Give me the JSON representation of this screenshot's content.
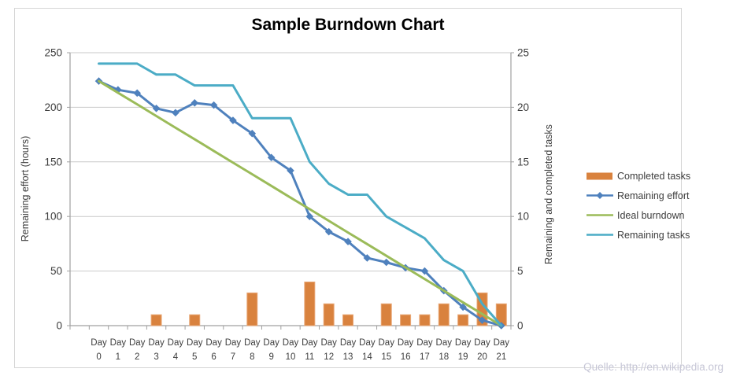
{
  "chart": {
    "title": "Sample Burndown Chart",
    "left_axis_title": "Remaining effort (hours)",
    "right_axis_title": "Remaining and completed tasks",
    "source_note": "Quelle: http://en.wikipedia.org"
  },
  "legend": {
    "items": [
      {
        "label": "Completed tasks",
        "swatch": "bar",
        "marker": "none",
        "color": "#D9823E"
      },
      {
        "label": "Remaining effort",
        "swatch": "line",
        "marker": "diamond",
        "color": "#4F81BD"
      },
      {
        "label": "Ideal burndown",
        "swatch": "line",
        "marker": "none",
        "color": "#9BBB59"
      },
      {
        "label": "Remaining tasks",
        "swatch": "line",
        "marker": "none",
        "color": "#4BACC6"
      }
    ]
  },
  "chart_data": {
    "type": "combo-bar-line",
    "title": "Sample Burndown Chart",
    "categories": [
      "Day 0",
      "Day 1",
      "Day 2",
      "Day 3",
      "Day 4",
      "Day 5",
      "Day 6",
      "Day 7",
      "Day 8",
      "Day 9",
      "Day 10",
      "Day 11",
      "Day 12",
      "Day 13",
      "Day 14",
      "Day 15",
      "Day 16",
      "Day 17",
      "Day 18",
      "Day 19",
      "Day 20",
      "Day 21"
    ],
    "left_axis": {
      "label": "Remaining effort (hours)",
      "min": 0,
      "max": 250,
      "ticks": [
        0,
        50,
        100,
        150,
        200,
        250
      ]
    },
    "right_axis": {
      "label": "Remaining and completed tasks",
      "min": 0,
      "max": 25,
      "ticks": [
        0,
        5,
        10,
        15,
        20,
        25
      ]
    },
    "grid": true,
    "legend_position": "right",
    "series": [
      {
        "name": "Completed tasks",
        "type": "bar",
        "axis": "right",
        "color": "#D9823E",
        "border_color": "#E9A878",
        "values": [
          0,
          0,
          0,
          1,
          0,
          1,
          0,
          0,
          3,
          0,
          0,
          4,
          2,
          1,
          0,
          2,
          1,
          1,
          2,
          1,
          3,
          2
        ]
      },
      {
        "name": "Remaining effort",
        "type": "line",
        "marker": "diamond",
        "axis": "left",
        "color": "#4F81BD",
        "values": [
          224,
          216,
          213,
          199,
          195,
          204,
          202,
          188,
          176,
          154,
          142,
          100,
          86,
          77,
          62,
          58,
          53,
          50,
          32,
          17,
          5,
          0
        ]
      },
      {
        "name": "Ideal burndown",
        "type": "line",
        "marker": "none",
        "axis": "left",
        "color": "#9BBB59",
        "values": [
          224,
          213.3,
          202.7,
          192,
          181.3,
          170.7,
          160,
          149.3,
          138.7,
          128,
          117.3,
          106.7,
          96,
          85.3,
          74.7,
          64,
          53.3,
          42.7,
          32,
          21.3,
          10.7,
          0
        ]
      },
      {
        "name": "Remaining tasks",
        "type": "line",
        "marker": "none",
        "axis": "right",
        "color": "#4BACC6",
        "values": [
          24,
          24,
          24,
          23,
          23,
          22,
          22,
          22,
          19,
          19,
          19,
          15,
          13,
          12,
          12,
          10,
          9,
          8,
          6,
          5,
          2,
          0
        ]
      }
    ]
  },
  "style": {
    "gridline_color": "#c9c9c9",
    "axis_line_color": "#a0a0a0",
    "tick_label_color": "#3d3d3d"
  }
}
